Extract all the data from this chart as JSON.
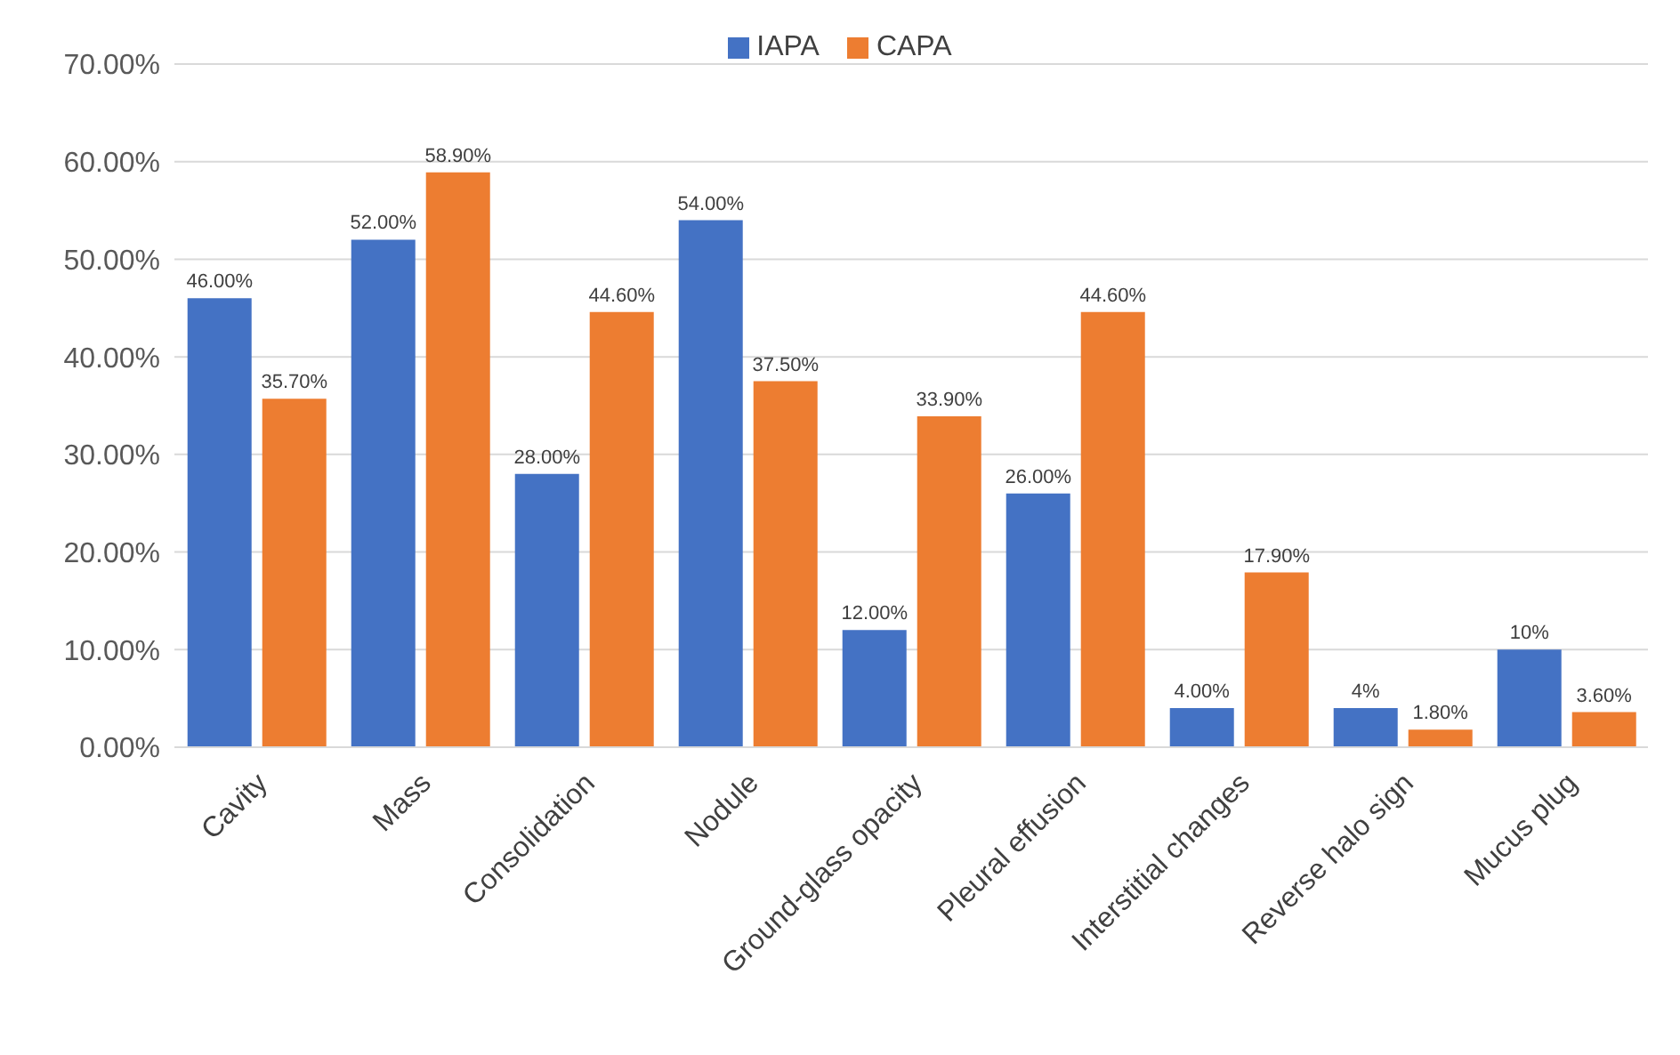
{
  "chart_data": {
    "type": "bar",
    "categories": [
      "Cavity",
      "Mass",
      "Consolidation",
      "Nodule",
      "Ground-glass opacity",
      "Pleural effusion",
      "Interstitial changes",
      "Reverse halo sign",
      "Mucus plug"
    ],
    "series": [
      {
        "name": "IAPA",
        "color": "#4472c4",
        "values": [
          46,
          52,
          28,
          54,
          12,
          26,
          4,
          4,
          10
        ],
        "value_labels": [
          "46.00%",
          "52.00%",
          "28.00%",
          "54.00%",
          "12.00%",
          "26.00%",
          "4.00%",
          "4%",
          "10%"
        ]
      },
      {
        "name": "CAPA",
        "color": "#ed7d31",
        "values": [
          35.7,
          58.9,
          44.6,
          37.5,
          33.9,
          44.6,
          17.9,
          1.8,
          3.6
        ],
        "value_labels": [
          "35.70%",
          "58.90%",
          "44.60%",
          "37.50%",
          "33.90%",
          "44.60%",
          "17.90%",
          "1.80%",
          "3.60%"
        ]
      }
    ],
    "ylim": [
      0,
      70
    ],
    "yticks": [
      {
        "value": 0,
        "label": "0.00%"
      },
      {
        "value": 10,
        "label": "10.00%"
      },
      {
        "value": 20,
        "label": "20.00%"
      },
      {
        "value": 30,
        "label": "30.00%"
      },
      {
        "value": 40,
        "label": "40.00%"
      },
      {
        "value": 50,
        "label": "50.00%"
      },
      {
        "value": 60,
        "label": "60.00%"
      },
      {
        "value": 70,
        "label": "70.00%"
      }
    ],
    "grid": "y",
    "legend": "top"
  }
}
